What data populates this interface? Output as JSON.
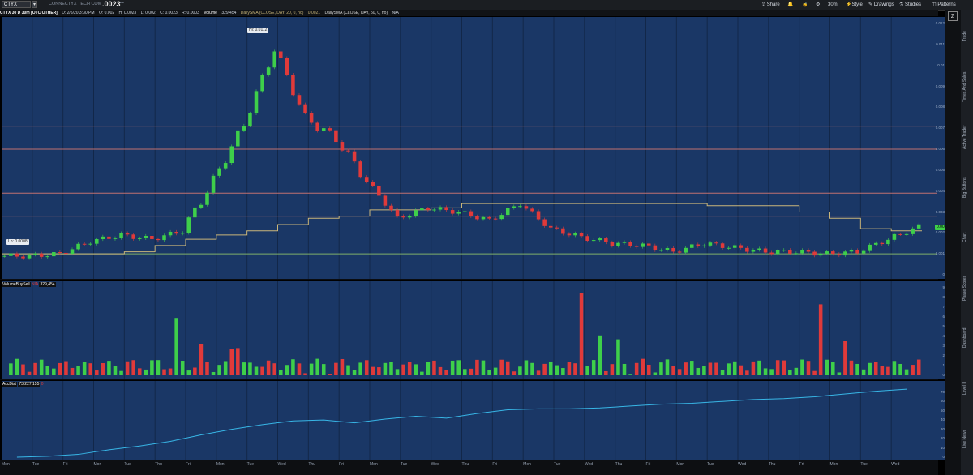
{
  "toolbar": {
    "symbol": "CTYX",
    "company": "CONNECTYX TECH COM",
    "last_price": ".0023",
    "buttons": {
      "share": "Share",
      "interval": "30m",
      "style": "Style",
      "drawings": "Drawings",
      "studies": "Studies",
      "patterns": "Patterns"
    }
  },
  "infobar": {
    "title": "CTYX 30 D 30m [OTC OTHER]",
    "datetime": "D: 2/5/20 3:30 PM",
    "open": "O: 0.002",
    "high": "H: 0.0023",
    "low": "L: 0.002",
    "close": "C: 0.0023",
    "range": "R: 0.0003",
    "volume_label": "Volume",
    "volume_value": "329,454",
    "sma20": "DailySMA (CLOSE, DAY, 20, 0, no)",
    "sma20_value": "0.0021",
    "sma50": "DailySMA (CLOSE, DAY, 50, 0, no)",
    "sma50_value": "N/A"
  },
  "price_pane": {
    "y_ticks": [
      "0.012",
      "0.011",
      "0.01",
      "0.009",
      "0.008",
      "0.007",
      "0.006",
      "0.005",
      "0.004",
      "0.003",
      "0.002",
      "0.001",
      "0"
    ],
    "hi_label": "Hi: 0.0112",
    "lo_label": "Lo: 0.0008",
    "last_tag": "0.0023"
  },
  "volume_pane": {
    "title": "VolumeBuySell",
    "na": "N/A",
    "value": "329,454",
    "y_ticks": [
      "9",
      "8",
      "7",
      "6",
      "5",
      "4",
      "3",
      "2",
      "1",
      "0"
    ],
    "unit": "x1000000"
  },
  "accdist_pane": {
    "title": "AccDist",
    "value": "73,227,155",
    "zero": "0",
    "y_ticks": [
      "70",
      "60",
      "50",
      "40",
      "30",
      "20",
      "10",
      "0"
    ],
    "unit": "x1000000"
  },
  "x_axis": [
    "Mon",
    "Tue",
    "Fri",
    "Mon",
    "Tue",
    "Thu",
    "Fri",
    "Mon",
    "Tue",
    "Wed",
    "Thu",
    "Fri",
    "Mon",
    "Tue",
    "Wed",
    "Thu",
    "Fri",
    "Mon",
    "Tue",
    "Wed",
    "Thu",
    "Fri",
    "Mon",
    "Tue",
    "Wed",
    "Thu",
    "Fri",
    "Mon",
    "Tue",
    "Wed"
  ],
  "side_tabs": [
    "Trade",
    "Times And Sales",
    "Active Trader",
    "Big Buttons",
    "Chart",
    "Phase Scores",
    "Dashboard",
    "Level II",
    "Live News"
  ],
  "colors": {
    "up": "#3ecf4a",
    "down": "#e03a3a",
    "pane_bg": "#1a3766",
    "sma": "#c9b67a",
    "accdist": "#38b6e6"
  },
  "chart_data": {
    "type": "line",
    "title": "CTYX 30 D 30m [OTC OTHER]",
    "ylim": [
      0,
      0.012
    ],
    "hi": 0.0112,
    "lo": 0.0008,
    "last": 0.0023,
    "x": [
      "Mon",
      "Tue",
      "Fri",
      "Mon",
      "Tue",
      "Thu",
      "Fri",
      "Mon",
      "Tue",
      "Wed",
      "Thu",
      "Fri",
      "Mon",
      "Tue",
      "Wed",
      "Thu",
      "Fri",
      "Mon",
      "Tue",
      "Wed",
      "Thu",
      "Fri",
      "Mon",
      "Tue",
      "Wed",
      "Thu",
      "Fri",
      "Mon",
      "Tue",
      "Wed"
    ],
    "series": [
      {
        "name": "Close",
        "values": [
          0.0009,
          0.001,
          0.0016,
          0.0019,
          0.0017,
          0.0021,
          0.0045,
          0.0072,
          0.0108,
          0.0075,
          0.0065,
          0.0045,
          0.0027,
          0.0032,
          0.003,
          0.0026,
          0.0034,
          0.0022,
          0.0018,
          0.0015,
          0.0014,
          0.0011,
          0.0015,
          0.0013,
          0.0011,
          0.0011,
          0.001,
          0.0011,
          0.0017,
          0.0023
        ]
      },
      {
        "name": "DailySMA (CLOSE, DAY, 20, 0, no)",
        "values": [
          0.001,
          0.001,
          0.001,
          0.001,
          0.0011,
          0.0014,
          0.0017,
          0.0019,
          0.0021,
          0.0024,
          0.0027,
          0.0028,
          0.0031,
          0.0031,
          0.0032,
          0.0034,
          0.0034,
          0.0034,
          0.0034,
          0.0034,
          0.0034,
          0.0034,
          0.0034,
          0.0033,
          0.0033,
          0.0033,
          0.003,
          0.0027,
          0.0022,
          0.0021
        ]
      }
    ]
  }
}
